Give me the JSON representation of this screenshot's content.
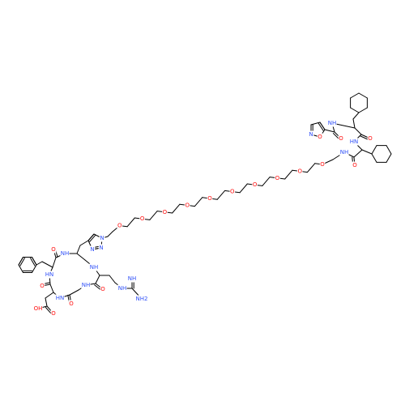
{
  "atom_labels": [
    "NH",
    "O",
    "HN",
    "N",
    "O",
    "O",
    "NH",
    "O",
    "O",
    "O",
    "O",
    "O",
    "O",
    "O",
    "O",
    "O",
    "O",
    "O",
    "N",
    "N",
    "N",
    "NH",
    "O",
    "HN",
    "O",
    "OH",
    "O",
    "HN",
    "O",
    "NH",
    "O",
    "NH",
    "NH",
    "NH",
    "NH2"
  ]
}
